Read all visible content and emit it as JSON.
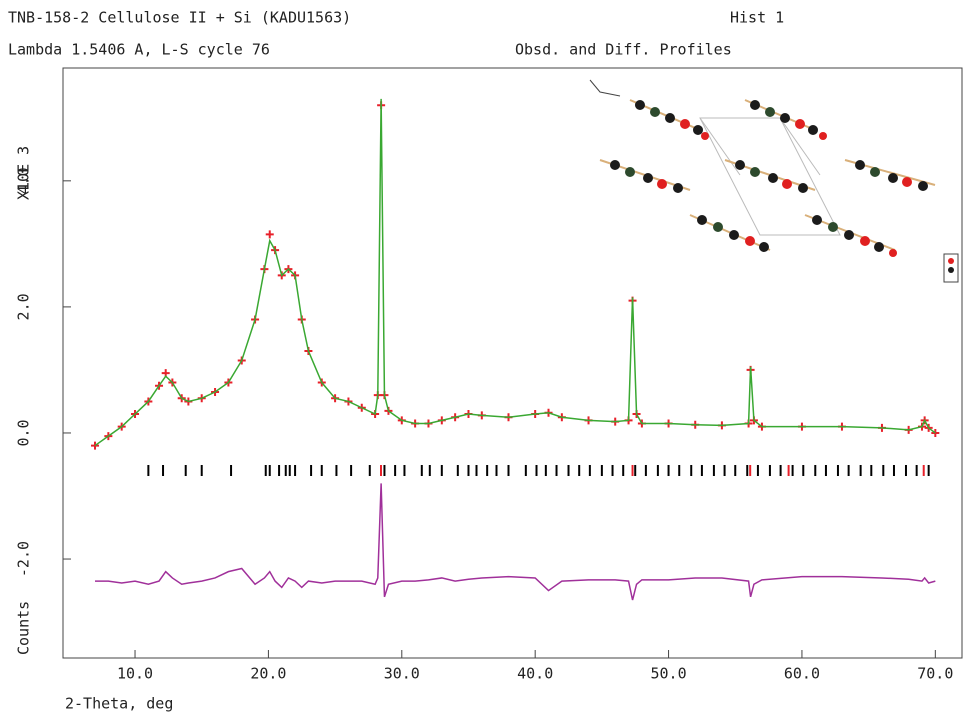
{
  "chart_data": {
    "type": "line",
    "title": "TNB-158-2 Cellulose II + Si (KADU1563)",
    "histogram": "Hist 1",
    "subtitle": "Lambda 1.5406 A, L-S cycle 76",
    "profile_label": "Obsd. and Diff. Profiles",
    "ylabel_scale": "X10E 3",
    "ylabel": "Counts",
    "xlabel": "2-Theta, deg",
    "xlim": [
      4.6,
      72.0
    ],
    "ylim": [
      -3.57,
      5.79
    ],
    "xticks": [
      {
        "value": 10,
        "label": "10.0"
      },
      {
        "value": 20,
        "label": "20.0"
      },
      {
        "value": 30,
        "label": "30.0"
      },
      {
        "value": 40,
        "label": "40.0"
      },
      {
        "value": 50,
        "label": "50.0"
      },
      {
        "value": 60,
        "label": "60.0"
      },
      {
        "value": 70,
        "label": "70.0"
      }
    ],
    "yticks": [
      {
        "value": -2,
        "label": "-2.0"
      },
      {
        "value": 0,
        "label": "0.0"
      },
      {
        "value": 2,
        "label": "2.0"
      },
      {
        "value": 4,
        "label": "4.0"
      }
    ],
    "x": [
      7,
      8,
      9,
      10,
      11,
      11.8,
      12.3,
      12.8,
      13.5,
      14,
      15,
      16,
      17,
      18,
      19,
      19.7,
      20.1,
      20.5,
      21,
      21.5,
      22,
      22.5,
      23,
      24,
      25,
      26,
      27,
      28,
      28.2,
      28.45,
      28.7,
      29,
      30,
      31,
      32,
      33,
      34,
      35,
      36,
      38,
      40,
      41,
      42,
      44,
      46,
      47,
      47.3,
      47.6,
      48,
      50,
      52,
      54,
      56,
      56.15,
      56.4,
      57,
      60,
      63,
      66,
      68,
      69,
      69.2,
      69.5,
      70
    ],
    "series": [
      {
        "color": "#e8202a",
        "marker": "cross",
        "values": [
          -0.2,
          -0.05,
          0.1,
          0.3,
          0.5,
          0.75,
          0.95,
          0.8,
          0.55,
          0.5,
          0.55,
          0.65,
          0.8,
          1.15,
          1.8,
          2.6,
          3.15,
          2.9,
          2.5,
          2.6,
          2.5,
          1.8,
          1.3,
          0.8,
          0.55,
          0.5,
          0.4,
          0.3,
          0.6,
          5.2,
          0.6,
          0.35,
          0.2,
          0.15,
          0.15,
          0.2,
          0.25,
          0.3,
          0.28,
          0.25,
          0.3,
          0.32,
          0.25,
          0.2,
          0.18,
          0.2,
          2.1,
          0.3,
          0.15,
          0.15,
          0.13,
          0.12,
          0.15,
          1.0,
          0.2,
          0.1,
          0.1,
          0.1,
          0.08,
          0.05,
          0.1,
          0.2,
          0.08,
          0.0
        ]
      },
      {
        "color": "#3aa832",
        "marker": "line",
        "values": [
          -0.2,
          -0.05,
          0.1,
          0.3,
          0.5,
          0.75,
          0.9,
          0.8,
          0.55,
          0.5,
          0.55,
          0.65,
          0.8,
          1.15,
          1.8,
          2.6,
          3.05,
          2.9,
          2.5,
          2.6,
          2.5,
          1.8,
          1.3,
          0.8,
          0.55,
          0.5,
          0.4,
          0.3,
          0.6,
          5.3,
          0.6,
          0.35,
          0.2,
          0.15,
          0.15,
          0.2,
          0.25,
          0.3,
          0.28,
          0.25,
          0.3,
          0.32,
          0.25,
          0.2,
          0.18,
          0.2,
          2.15,
          0.3,
          0.15,
          0.15,
          0.13,
          0.12,
          0.15,
          1.05,
          0.2,
          0.1,
          0.1,
          0.1,
          0.08,
          0.05,
          0.1,
          0.2,
          0.08,
          0.0
        ]
      },
      {
        "color": "#a0309a",
        "marker": "line",
        "values": [
          -2.35,
          -2.35,
          -2.38,
          -2.35,
          -2.4,
          -2.35,
          -2.2,
          -2.3,
          -2.4,
          -2.38,
          -2.35,
          -2.3,
          -2.2,
          -2.15,
          -2.4,
          -2.3,
          -2.2,
          -2.35,
          -2.45,
          -2.3,
          -2.35,
          -2.45,
          -2.35,
          -2.38,
          -2.35,
          -2.35,
          -2.35,
          -2.4,
          -2.3,
          -0.8,
          -2.6,
          -2.4,
          -2.35,
          -2.35,
          -2.33,
          -2.3,
          -2.35,
          -2.32,
          -2.3,
          -2.28,
          -2.3,
          -2.5,
          -2.35,
          -2.33,
          -2.33,
          -2.35,
          -2.65,
          -2.4,
          -2.33,
          -2.33,
          -2.3,
          -2.3,
          -2.35,
          -2.6,
          -2.4,
          -2.33,
          -2.28,
          -2.28,
          -2.3,
          -2.32,
          -2.35,
          -2.3,
          -2.38,
          -2.35
        ]
      }
    ],
    "reflections": [
      {
        "color": "#000000",
        "x": [
          11.0,
          12.1,
          13.8,
          15.0,
          17.2,
          19.8,
          20.1,
          20.8,
          21.3,
          21.6,
          22.0,
          23.2,
          24.0,
          25.1,
          26.2,
          27.6,
          28.7,
          29.5,
          30.2,
          31.5,
          32.1,
          33.0,
          34.2,
          35.0,
          35.6,
          36.4,
          37.1,
          38.0,
          39.3,
          40.1,
          40.8,
          41.6,
          42.5,
          43.3,
          44.1,
          45.0,
          45.8,
          46.6,
          47.5,
          48.3,
          49.2,
          50.0,
          50.8,
          51.7,
          52.5,
          53.4,
          54.2,
          55.0,
          55.9,
          56.7,
          57.6,
          58.4,
          59.3,
          60.1,
          61.0,
          61.8,
          62.7,
          63.5,
          64.4,
          65.2,
          66.1,
          66.9,
          67.8,
          68.6,
          69.5
        ]
      },
      {
        "color": "#e8202a",
        "x": [
          28.44,
          47.3,
          56.12,
          59.0,
          69.13
        ]
      }
    ]
  }
}
